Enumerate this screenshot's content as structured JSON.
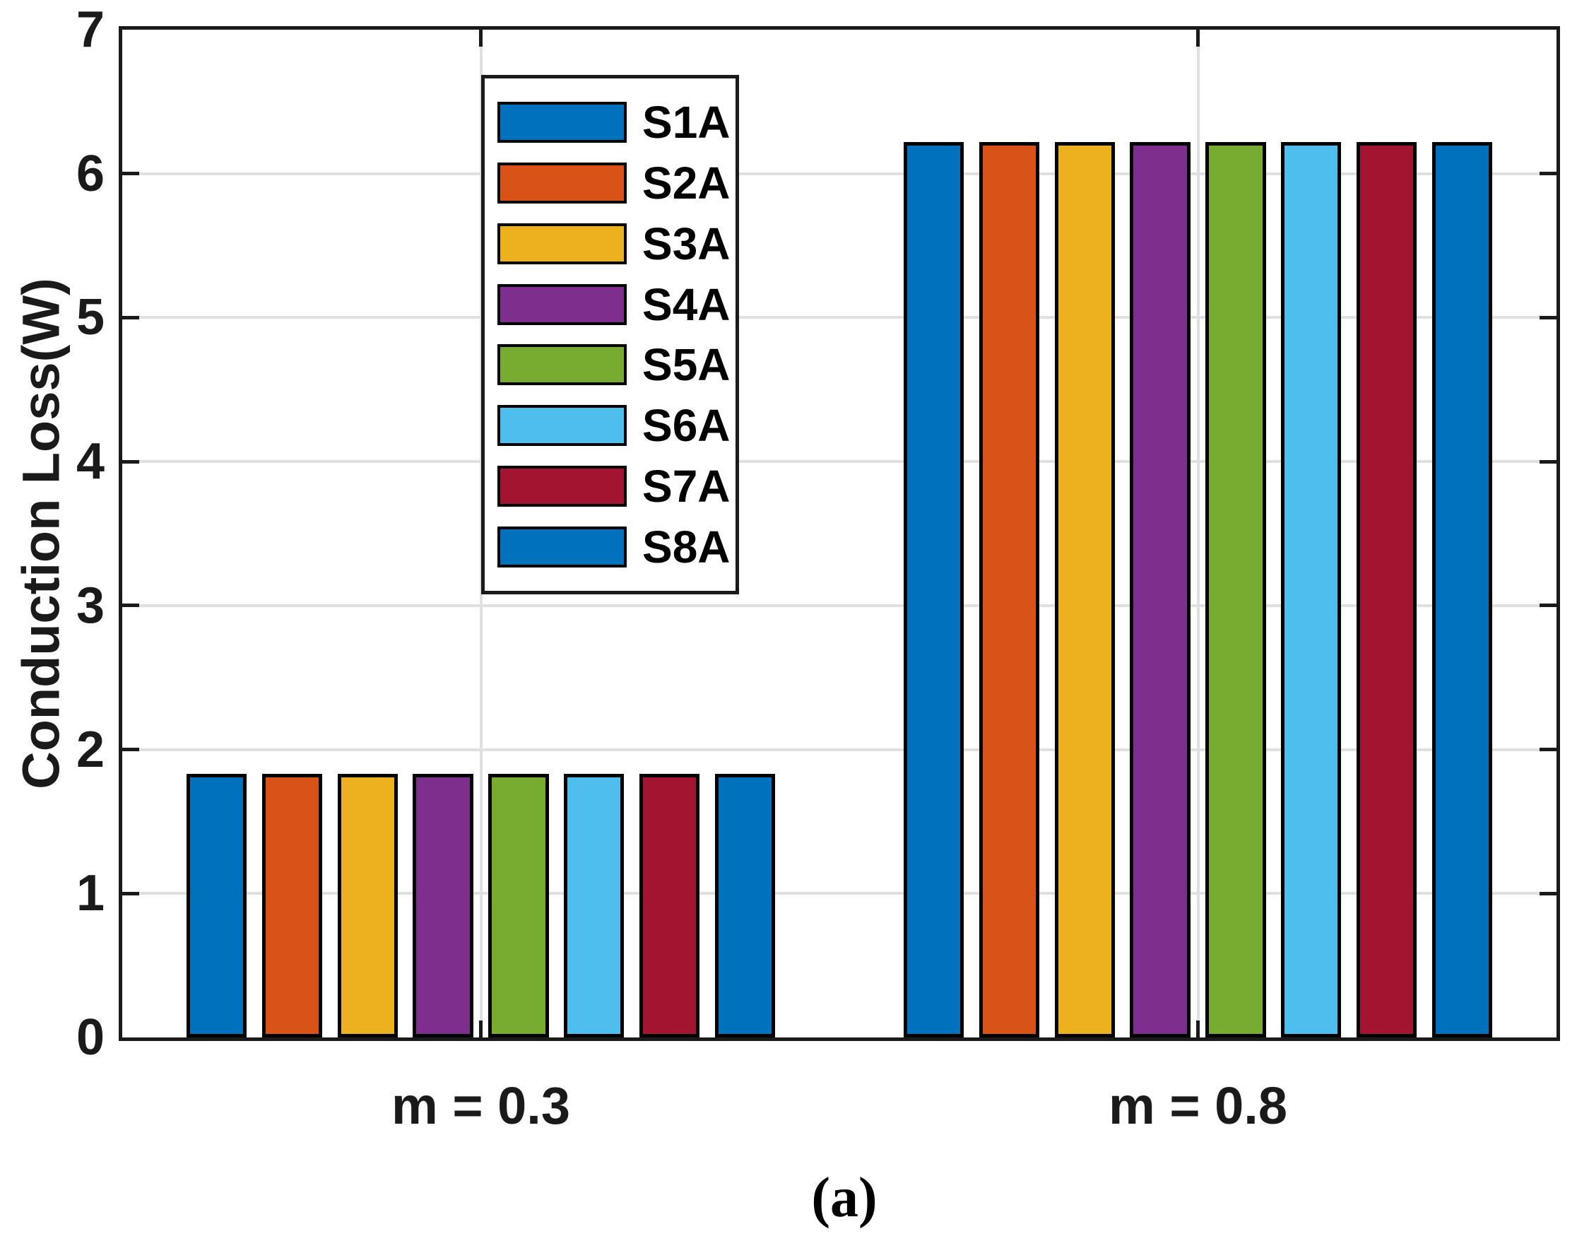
{
  "chart_data": {
    "type": "bar",
    "title": "",
    "xlabel": "",
    "ylabel": "Conduction Loss(W)",
    "caption": "(a)",
    "categories": [
      "m = 0.3",
      "m = 0.8"
    ],
    "series": [
      {
        "name": "S1A",
        "color": "#0072BD",
        "values": [
          1.83,
          6.22
        ]
      },
      {
        "name": "S2A",
        "color": "#D95319",
        "values": [
          1.83,
          6.22
        ]
      },
      {
        "name": "S3A",
        "color": "#EDB120",
        "values": [
          1.83,
          6.22
        ]
      },
      {
        "name": "S4A",
        "color": "#7E2F8E",
        "values": [
          1.83,
          6.22
        ]
      },
      {
        "name": "S5A",
        "color": "#77AC30",
        "values": [
          1.83,
          6.22
        ]
      },
      {
        "name": "S6A",
        "color": "#4DBEEE",
        "values": [
          1.83,
          6.22
        ]
      },
      {
        "name": "S7A",
        "color": "#A2142F",
        "values": [
          1.83,
          6.22
        ]
      },
      {
        "name": "S8A",
        "color": "#0072BD",
        "values": [
          1.83,
          6.22
        ]
      }
    ],
    "ylim": [
      0,
      7
    ],
    "yticks": [
      0,
      1,
      2,
      3,
      4,
      5,
      6,
      7
    ],
    "grid": true,
    "legend_position": "upper-left-inside",
    "colors": {
      "axis": "#1a1a1a",
      "gridline": "#e0e0e0",
      "bar_edge": "#000000",
      "background": "#ffffff"
    }
  }
}
